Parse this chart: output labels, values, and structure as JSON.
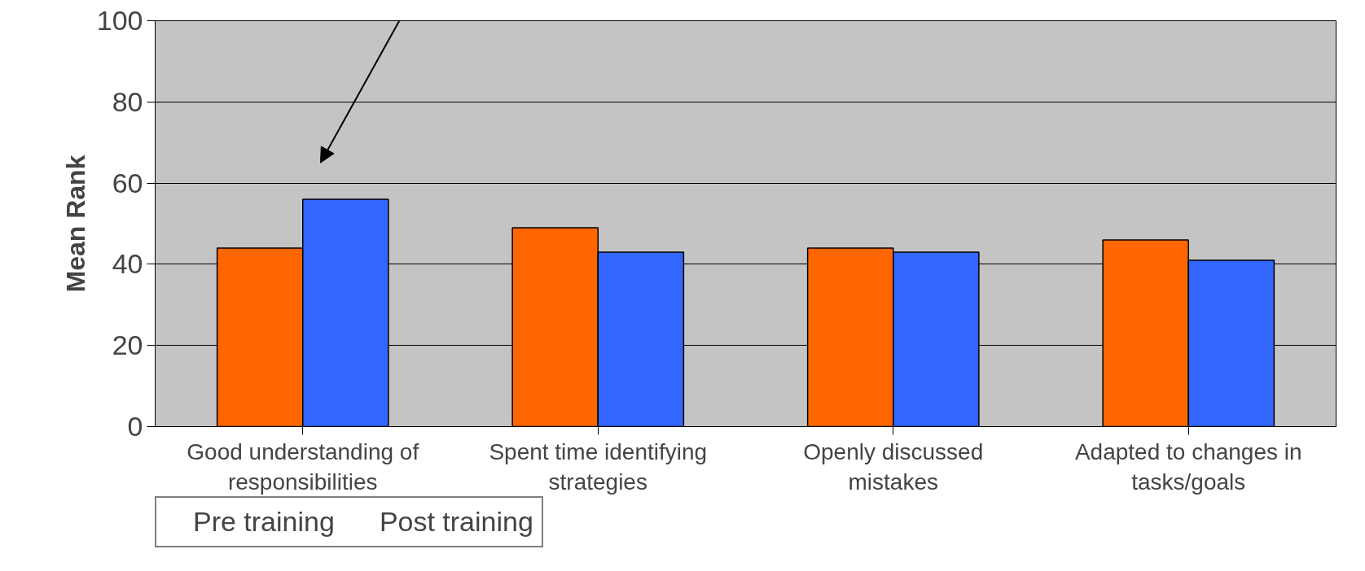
{
  "chart_data": {
    "type": "bar",
    "ylabel": "Mean Rank",
    "categories": [
      "Good understanding of responsibilities",
      "Spent time identifying strategies",
      "Openly discussed mistakes",
      "Adapted to changes in tasks/goals"
    ],
    "series": [
      {
        "name": "Pre training",
        "color": "#ff6600",
        "values": [
          44,
          49,
          44,
          46
        ]
      },
      {
        "name": "Post training",
        "color": "#3366ff",
        "values": [
          56,
          43,
          43,
          41
        ]
      }
    ],
    "ylim": [
      0,
      100
    ],
    "yticks": [
      0,
      20,
      40,
      60,
      80,
      100
    ],
    "grid": "y",
    "legend": "bottom left"
  }
}
